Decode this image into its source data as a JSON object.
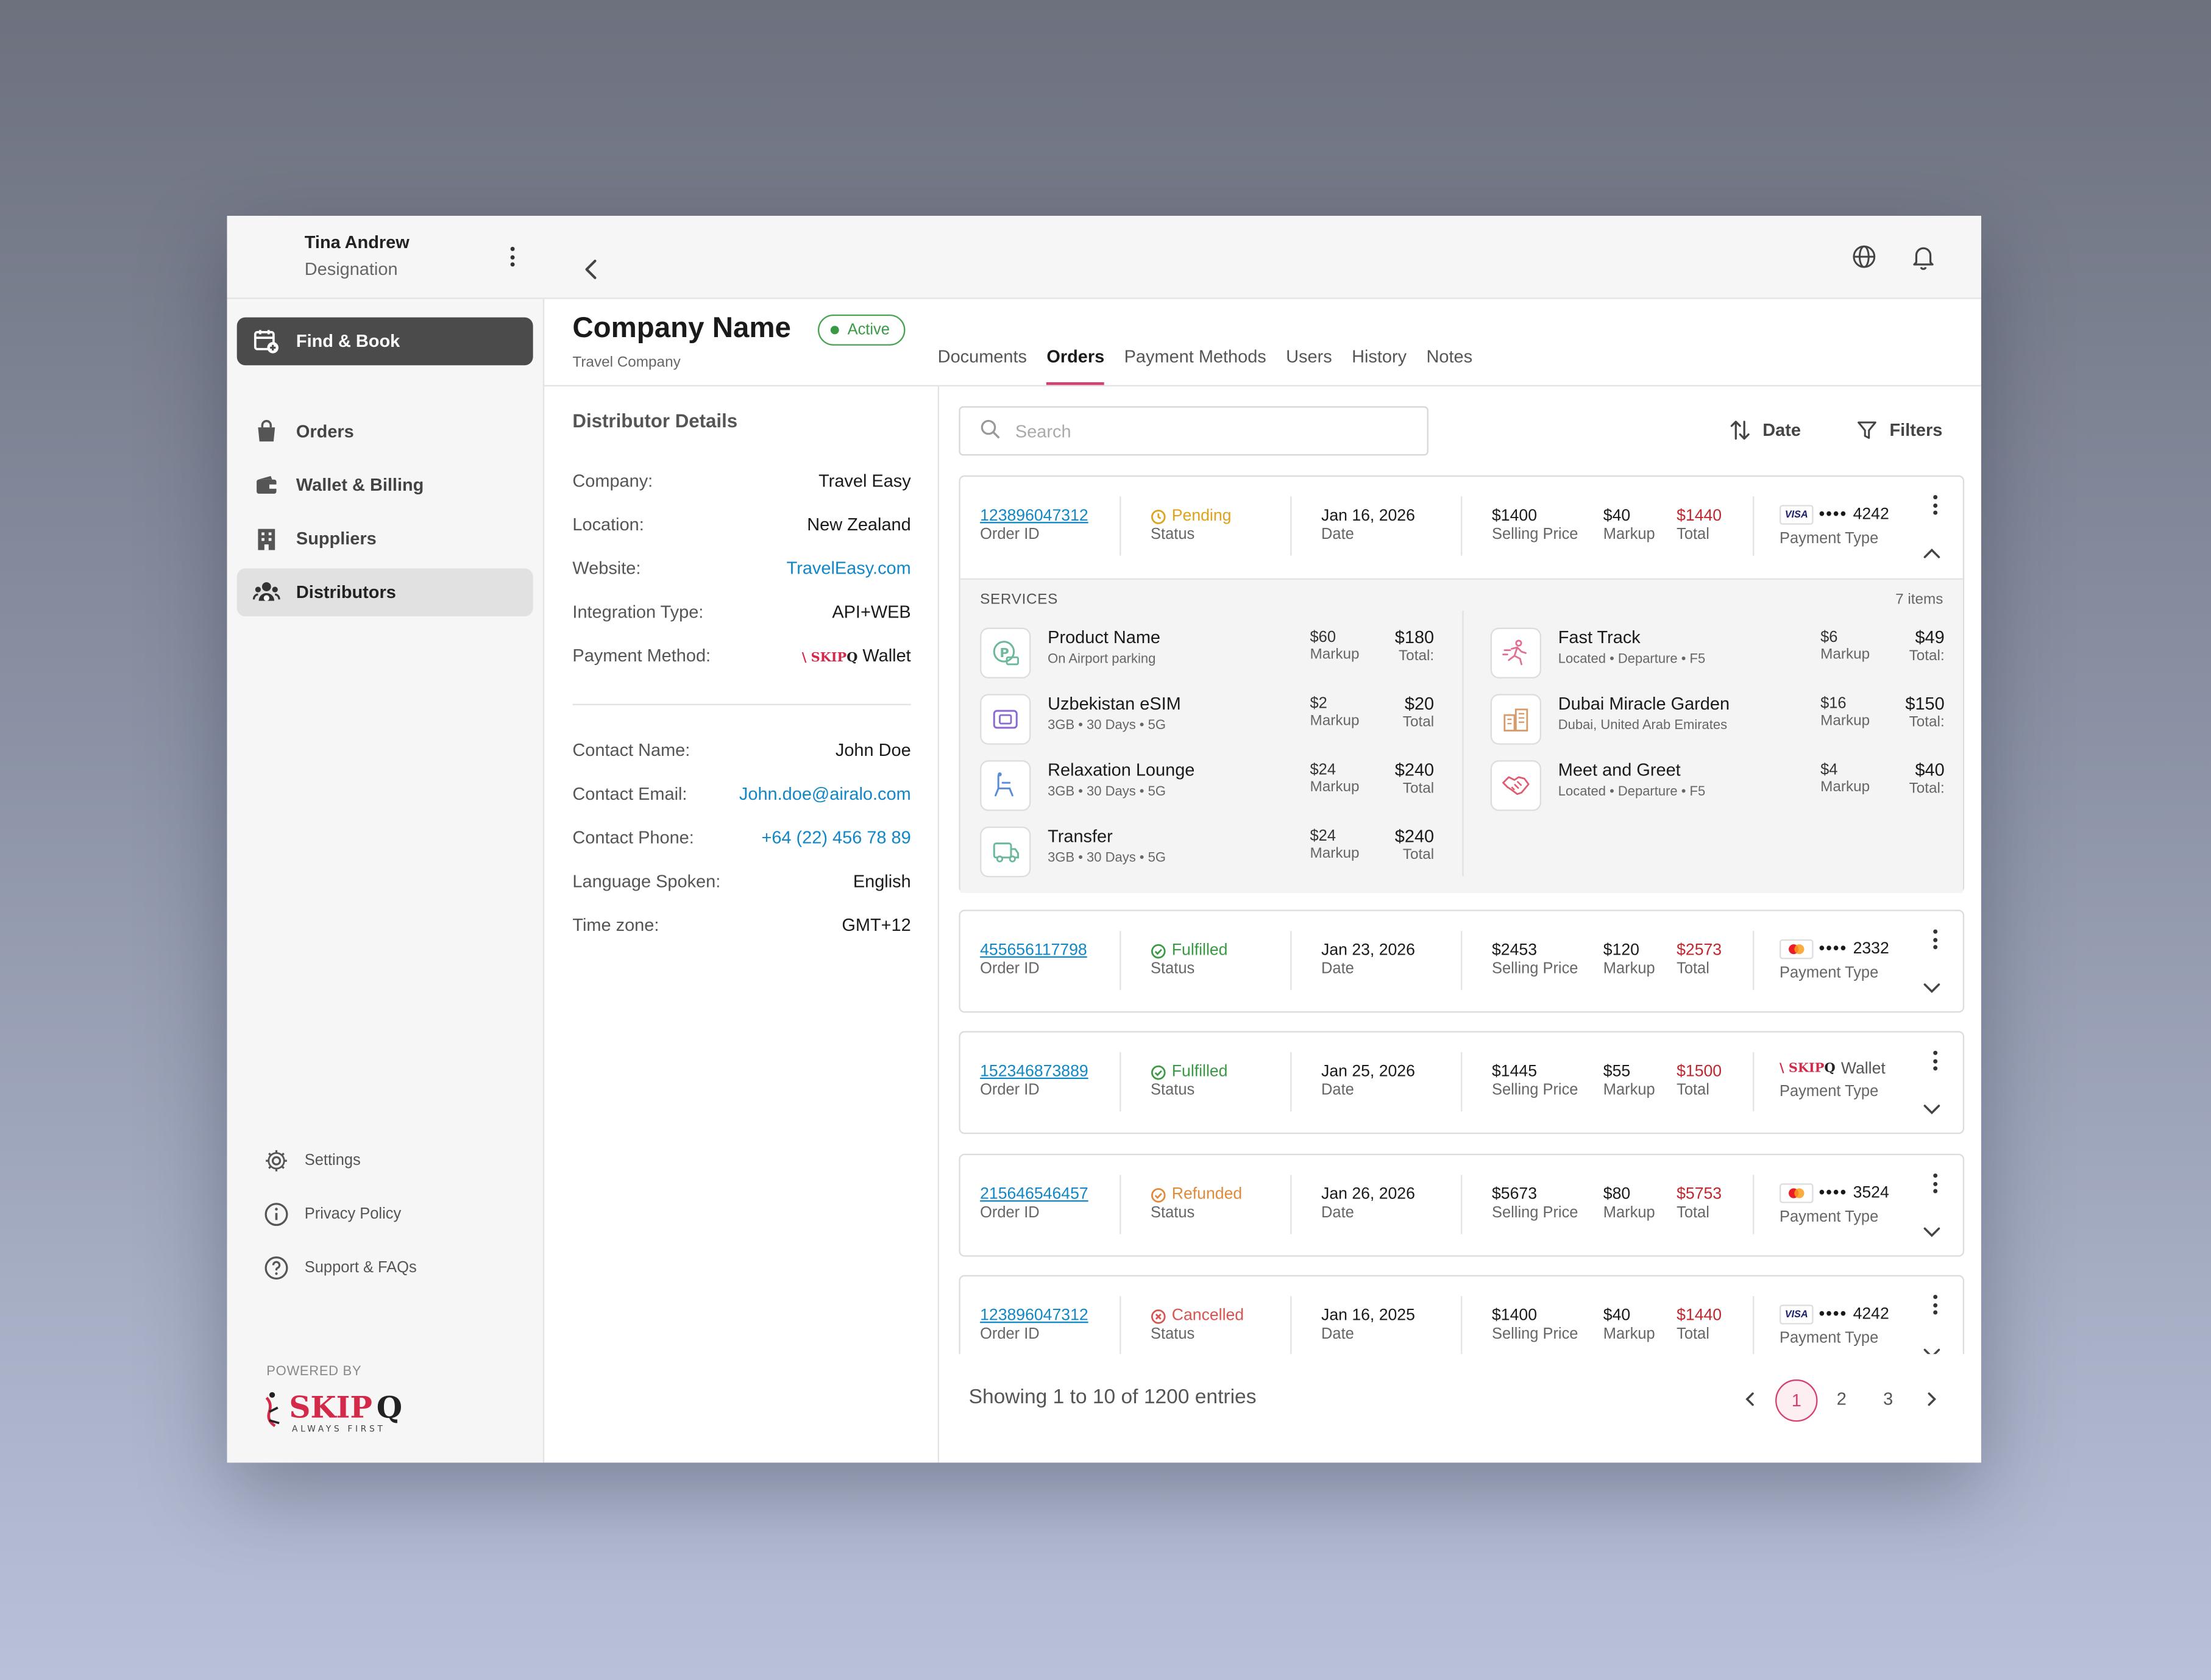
{
  "user": {
    "name": "Tina Andrew",
    "designation": "Designation"
  },
  "nav": [
    {
      "label": "Find & Book",
      "icon": "calendar-add-icon"
    },
    {
      "label": "Orders",
      "icon": "shopping-bag-icon"
    },
    {
      "label": "Wallet & Billing",
      "icon": "wallet-icon"
    },
    {
      "label": "Suppliers",
      "icon": "building-icon"
    },
    {
      "label": "Distributors",
      "icon": "users-group-icon"
    }
  ],
  "footer_nav": [
    {
      "label": "Settings",
      "icon": "gear-icon"
    },
    {
      "label": "Privacy Policy",
      "icon": "info-icon"
    },
    {
      "label": "Support & FAQs",
      "icon": "help-icon"
    }
  ],
  "powered_by": "POWERED BY",
  "brand": {
    "name": "SKIPQ",
    "tagline": "ALWAYS FIRST"
  },
  "company": {
    "name": "Company Name",
    "status": "Active",
    "type": "Travel Company"
  },
  "tabs": [
    "Documents",
    "Orders",
    "Payment Methods",
    "Users",
    "History",
    "Notes"
  ],
  "active_tab": "Orders",
  "details": {
    "title": "Distributor Details",
    "rows": [
      {
        "label": "Company:",
        "value": "Travel Easy"
      },
      {
        "label": "Location:",
        "value": "New Zealand"
      },
      {
        "label": "Website:",
        "value": "TravelEasy.com"
      },
      {
        "label": "Integration Type:",
        "value": "API+WEB"
      },
      {
        "label": "Payment Method:",
        "value": "Wallet"
      }
    ],
    "contact": [
      {
        "label": "Contact Name:",
        "value": "John Doe"
      },
      {
        "label": "Contact Email:",
        "value": "John.doe@airalo.com"
      },
      {
        "label": "Contact Phone:",
        "value": "+64 (22) 456 78 89"
      },
      {
        "label": "Language Spoken:",
        "value": "English"
      },
      {
        "label": "Time zone:",
        "value": "GMT+12"
      }
    ]
  },
  "search": {
    "placeholder": "Search"
  },
  "toolbar": {
    "sort_label": "Date",
    "filters_label": "Filters"
  },
  "labels": {
    "order_id": "Order ID",
    "status": "Status",
    "date": "Date",
    "selling_price": "Selling Price",
    "markup": "Markup",
    "total": "Total",
    "payment_type": "Payment Type",
    "services": "SERVICES",
    "items": "7 items",
    "total_colon": "Total:",
    "wallet": "Wallet"
  },
  "orders": [
    {
      "id": "123896047312",
      "status": "Pending",
      "date": "Jan 16, 2026",
      "selling": "$1400",
      "markup": "$40",
      "total": "$1440",
      "card": "visa",
      "last4": "4242"
    },
    {
      "id": "455656117798",
      "status": "Fulfilled",
      "date": "Jan 23, 2026",
      "selling": "$2453",
      "markup": "$120",
      "total": "$2573",
      "card": "mastercard",
      "last4": "2332"
    },
    {
      "id": "152346873889",
      "status": "Fulfilled",
      "date": "Jan 25, 2026",
      "selling": "$1445",
      "markup": "$55",
      "total": "$1500",
      "card": "wallet",
      "last4": ""
    },
    {
      "id": "215646546457",
      "status": "Refunded",
      "date": "Jan 26, 2026",
      "selling": "$5673",
      "markup": "$80",
      "total": "$5753",
      "card": "mastercard",
      "last4": "3524"
    },
    {
      "id": "123896047312",
      "status": "Cancelled",
      "date": "Jan 16, 2025",
      "selling": "$1400",
      "markup": "$40",
      "total": "$1440",
      "card": "visa",
      "last4": "4242"
    }
  ],
  "services_left": [
    {
      "name": "Product Name",
      "sub": "On Airport parking",
      "markup": "$60",
      "total": "$180",
      "total_label": "Total:"
    },
    {
      "name": "Uzbekistan eSIM",
      "sub": "3GB • 30 Days • 5G",
      "markup": "$2",
      "total": "$20",
      "total_label": "Total"
    },
    {
      "name": "Relaxation Lounge",
      "sub": "3GB • 30 Days • 5G",
      "markup": "$24",
      "total": "$240",
      "total_label": "Total"
    },
    {
      "name": "Transfer",
      "sub": "3GB • 30 Days • 5G",
      "markup": "$24",
      "total": "$240",
      "total_label": "Total"
    }
  ],
  "services_right": [
    {
      "name": "Fast Track",
      "sub": "Located • Departure • F5",
      "markup": "$6",
      "total": "$49",
      "total_label": "Total:"
    },
    {
      "name": "Dubai Miracle Garden",
      "sub": "Dubai, United Arab Emirates",
      "markup": "$16",
      "total": "$150",
      "total_label": "Total:"
    },
    {
      "name": "Meet and Greet",
      "sub": "Located • Departure • F5",
      "markup": "$4",
      "total": "$40",
      "total_label": "Total:"
    }
  ],
  "pagination": {
    "summary": "Showing 1 to 10 of 1200 entries",
    "pages": [
      "1",
      "2",
      "3"
    ],
    "current": "1"
  },
  "colors": {
    "accent": "#d64070",
    "link": "#1287c7",
    "total": "#c0282d",
    "active": "#3a9a44",
    "pending": "#e0a21b",
    "refunded": "#e08a3a",
    "cancelled": "#d9534f"
  }
}
